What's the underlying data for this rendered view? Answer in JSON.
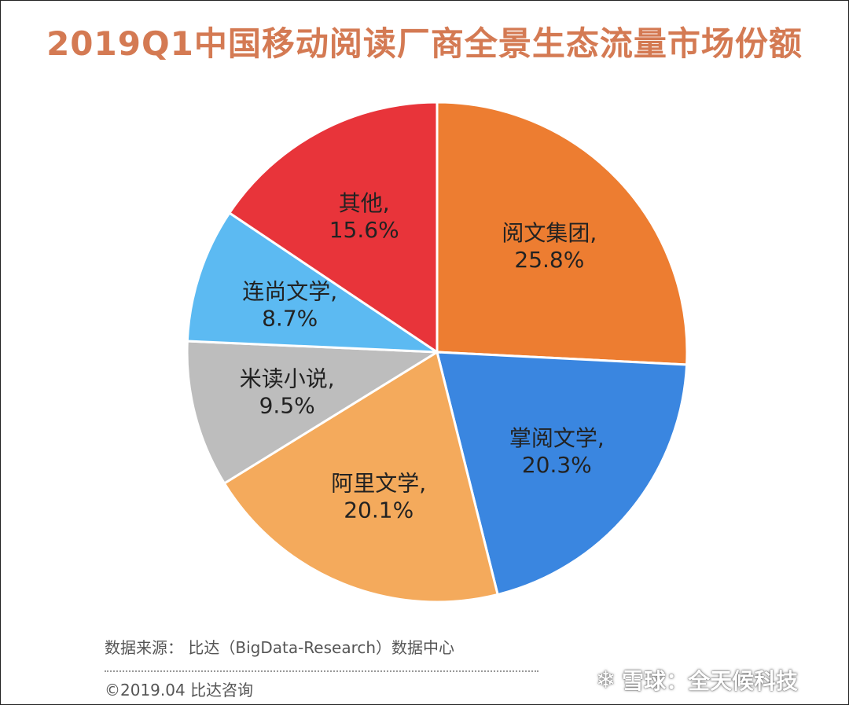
{
  "title": "2019Q1中国移动阅读厂商全景生态流量市场份额",
  "source": "数据来源： 比达（BigData-Research）数据中心",
  "copyright": "©2019.04 比达咨询",
  "watermark": {
    "logo_icon": "snowball-logo",
    "text": "雪球：全天候科技"
  },
  "chart_data": {
    "type": "pie",
    "title": "2019Q1中国移动阅读厂商全景生态流量市场份额",
    "slices": [
      {
        "name": "阅文集团",
        "value": 25.8,
        "label": "25.8%",
        "color": "#ed7d31"
      },
      {
        "name": "掌阅文学",
        "value": 20.3,
        "label": "20.3%",
        "color": "#3a86e0"
      },
      {
        "name": "阿里文学",
        "value": 20.1,
        "label": "20.1%",
        "color": "#f4aa5c"
      },
      {
        "name": "米读小说",
        "value": 9.5,
        "label": "9.5%",
        "color": "#bdbdbd"
      },
      {
        "name": "连尚文学",
        "value": 8.7,
        "label": "8.7%",
        "color": "#5cbaf2"
      },
      {
        "name": "其他",
        "value": 15.6,
        "label": "15.6%",
        "color": "#e8343a"
      }
    ]
  }
}
